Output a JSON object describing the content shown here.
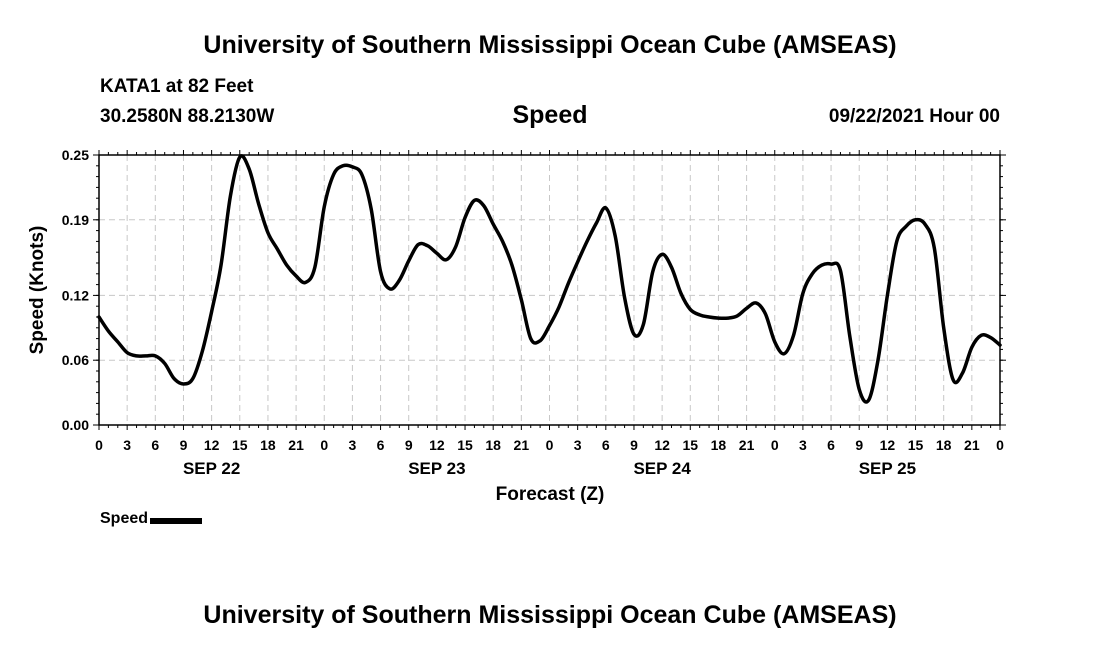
{
  "header": {
    "title_top": "University of Southern Mississippi Ocean Cube (AMSEAS)",
    "station": "KATA1 at 82 Feet",
    "coords": "30.2580N  88.2130W",
    "variable": "Speed",
    "run_time": "09/22/2021 Hour 00"
  },
  "footer": {
    "title_bottom": "University of Southern Mississippi Ocean Cube (AMSEAS)"
  },
  "legend": {
    "label": "Speed",
    "color": "#000000"
  },
  "chart_data": {
    "type": "line",
    "title": "Speed",
    "xlabel": "Forecast (Z)",
    "ylabel": "Speed (Knots)",
    "xlim": [
      0,
      96
    ],
    "ylim": [
      0,
      0.25
    ],
    "grid": true,
    "y_ticks": [
      0,
      0.06,
      0.12,
      0.19,
      0.25
    ],
    "y_tick_labels": [
      "0.00",
      "0.06",
      "0.12",
      "0.19",
      "0.25"
    ],
    "x_tick_labels": [
      "0",
      "3",
      "6",
      "9",
      "12",
      "15",
      "18",
      "21",
      "0",
      "3",
      "6",
      "9",
      "12",
      "15",
      "18",
      "21",
      "0",
      "3",
      "6",
      "9",
      "12",
      "15",
      "18",
      "21",
      "0",
      "3",
      "6",
      "9",
      "12",
      "15",
      "18",
      "21",
      "0"
    ],
    "date_labels": [
      {
        "label": "SEP 22",
        "hour": 12
      },
      {
        "label": "SEP 23",
        "hour": 36
      },
      {
        "label": "SEP 24",
        "hour": 60
      },
      {
        "label": "SEP 25",
        "hour": 84
      }
    ],
    "series": [
      {
        "name": "Speed",
        "x": [
          0,
          1,
          2,
          3,
          4,
          5,
          6,
          7,
          8,
          9,
          10,
          11,
          12,
          13,
          14,
          15,
          16,
          17,
          18,
          19,
          20,
          21,
          22,
          23,
          24,
          25,
          26,
          27,
          28,
          29,
          30,
          31,
          32,
          33,
          34,
          35,
          36,
          37,
          38,
          39,
          40,
          41,
          42,
          43,
          44,
          45,
          46,
          47,
          48,
          49,
          50,
          51,
          52,
          53,
          54,
          55,
          56,
          57,
          58,
          59,
          60,
          61,
          62,
          63,
          64,
          65,
          66,
          67,
          68,
          69,
          70,
          71,
          72,
          73,
          74,
          75,
          76,
          77,
          78,
          79,
          80,
          81,
          82,
          83,
          84,
          85,
          86,
          87,
          88,
          89,
          90,
          91,
          92,
          93,
          94,
          95,
          96
        ],
        "values": [
          0.1,
          0.087,
          0.077,
          0.067,
          0.064,
          0.064,
          0.064,
          0.057,
          0.043,
          0.038,
          0.043,
          0.068,
          0.105,
          0.148,
          0.212,
          0.248,
          0.237,
          0.205,
          0.178,
          0.163,
          0.148,
          0.138,
          0.132,
          0.146,
          0.202,
          0.232,
          0.24,
          0.239,
          0.232,
          0.2,
          0.142,
          0.126,
          0.134,
          0.152,
          0.167,
          0.166,
          0.159,
          0.153,
          0.165,
          0.192,
          0.208,
          0.203,
          0.186,
          0.17,
          0.148,
          0.116,
          0.08,
          0.078,
          0.092,
          0.109,
          0.131,
          0.151,
          0.17,
          0.187,
          0.201,
          0.175,
          0.118,
          0.084,
          0.093,
          0.142,
          0.158,
          0.146,
          0.122,
          0.107,
          0.102,
          0.1,
          0.099,
          0.099,
          0.101,
          0.108,
          0.113,
          0.103,
          0.077,
          0.066,
          0.083,
          0.122,
          0.14,
          0.148,
          0.149,
          0.143,
          0.082,
          0.033,
          0.023,
          0.06,
          0.12,
          0.17,
          0.184,
          0.19,
          0.186,
          0.164,
          0.09,
          0.042,
          0.048,
          0.072,
          0.083,
          0.081,
          0.074
        ]
      }
    ]
  }
}
